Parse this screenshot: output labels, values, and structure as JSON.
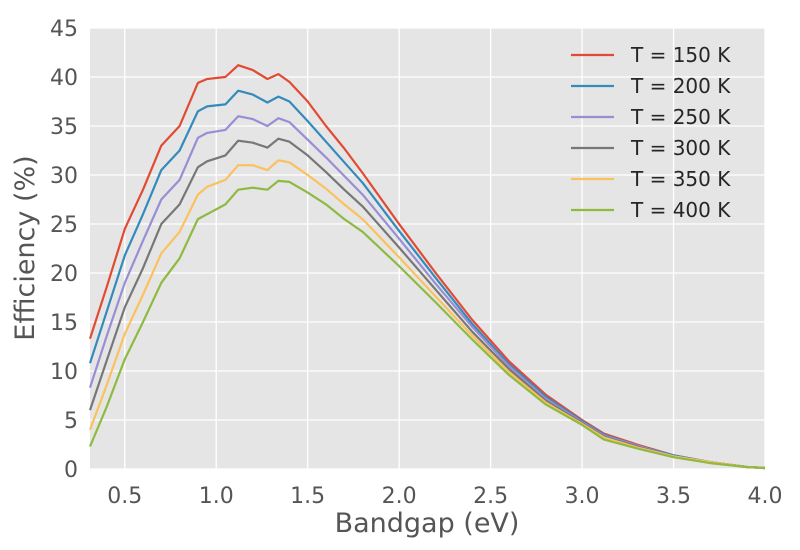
{
  "chart_data": {
    "type": "line",
    "title": "",
    "xlabel": "Bandgap (eV)",
    "ylabel": "Efficiency (%)",
    "xlim": [
      0.31,
      4.0
    ],
    "ylim": [
      0,
      45
    ],
    "xticks": [
      0.5,
      1.0,
      1.5,
      2.0,
      2.5,
      3.0,
      3.5,
      4.0
    ],
    "xtick_labels": [
      "0.5",
      "1.0",
      "1.5",
      "2.0",
      "2.5",
      "3.0",
      "3.5",
      "4.0"
    ],
    "yticks": [
      0,
      5,
      10,
      15,
      20,
      25,
      30,
      35,
      40,
      45
    ],
    "ytick_labels": [
      "0",
      "5",
      "10",
      "15",
      "20",
      "25",
      "30",
      "35",
      "40",
      "45"
    ],
    "grid": true,
    "legend_position": "top-right",
    "background": "#e5e5e5",
    "x": [
      0.31,
      0.4,
      0.5,
      0.6,
      0.7,
      0.8,
      0.9,
      0.95,
      1.05,
      1.12,
      1.2,
      1.28,
      1.34,
      1.4,
      1.5,
      1.6,
      1.7,
      1.8,
      2.0,
      2.2,
      2.4,
      2.6,
      2.8,
      3.0,
      3.12,
      3.3,
      3.5,
      3.7,
      3.9,
      4.0
    ],
    "series": [
      {
        "name": "T = 150 K",
        "color": "#e24a33",
        "values": [
          13.3,
          18.5,
          24.5,
          28.5,
          33.0,
          35.0,
          39.4,
          39.8,
          40.0,
          41.2,
          40.7,
          39.8,
          40.3,
          39.5,
          37.5,
          35.0,
          32.7,
          30.2,
          25.0,
          20.0,
          15.2,
          11.0,
          7.6,
          5.0,
          3.6,
          2.5,
          1.4,
          0.7,
          0.2,
          0.1
        ]
      },
      {
        "name": "T = 200 K",
        "color": "#348abd",
        "values": [
          10.8,
          16.0,
          21.8,
          26.0,
          30.5,
          32.5,
          36.5,
          37.0,
          37.2,
          38.6,
          38.2,
          37.4,
          38.0,
          37.5,
          35.5,
          33.4,
          31.3,
          29.2,
          24.3,
          19.5,
          14.8,
          10.7,
          7.4,
          4.9,
          3.5,
          2.4,
          1.4,
          0.7,
          0.2,
          0.1
        ]
      },
      {
        "name": "T = 250 K",
        "color": "#988ed5",
        "values": [
          8.3,
          13.5,
          19.0,
          23.3,
          27.5,
          29.5,
          33.8,
          34.3,
          34.6,
          36.0,
          35.7,
          35.0,
          35.8,
          35.4,
          33.6,
          31.8,
          29.9,
          28.0,
          23.5,
          18.9,
          14.5,
          10.5,
          7.2,
          4.8,
          3.4,
          2.4,
          1.3,
          0.7,
          0.2,
          0.1
        ]
      },
      {
        "name": "T = 300 K",
        "color": "#777777",
        "values": [
          6.0,
          11.0,
          16.5,
          20.5,
          25.0,
          27.0,
          30.8,
          31.4,
          32.0,
          33.5,
          33.3,
          32.8,
          33.7,
          33.4,
          32.0,
          30.3,
          28.5,
          26.8,
          22.6,
          18.3,
          14.0,
          10.2,
          7.0,
          4.7,
          3.3,
          2.3,
          1.3,
          0.7,
          0.2,
          0.1
        ]
      },
      {
        "name": "T = 350 K",
        "color": "#fbc15e",
        "values": [
          4.0,
          8.5,
          13.8,
          17.8,
          22.0,
          24.2,
          28.0,
          28.8,
          29.5,
          31.0,
          31.0,
          30.5,
          31.5,
          31.3,
          30.0,
          28.6,
          27.0,
          25.5,
          21.6,
          17.6,
          13.6,
          9.9,
          6.8,
          4.6,
          3.2,
          2.2,
          1.3,
          0.7,
          0.2,
          0.1
        ]
      },
      {
        "name": "T = 400 K",
        "color": "#8eba42",
        "values": [
          2.3,
          6.3,
          11.2,
          15.0,
          19.0,
          21.5,
          25.5,
          26.0,
          27.0,
          28.5,
          28.7,
          28.5,
          29.4,
          29.3,
          28.2,
          27.0,
          25.5,
          24.2,
          20.7,
          17.0,
          13.2,
          9.6,
          6.6,
          4.5,
          3.0,
          2.1,
          1.2,
          0.6,
          0.2,
          0.1
        ]
      }
    ]
  }
}
